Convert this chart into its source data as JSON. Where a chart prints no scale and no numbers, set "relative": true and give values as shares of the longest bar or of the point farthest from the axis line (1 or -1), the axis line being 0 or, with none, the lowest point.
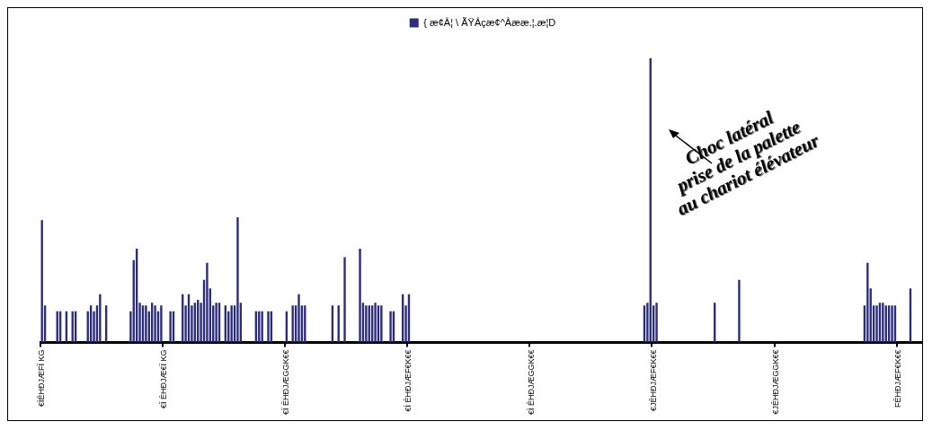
{
  "chart_data": {
    "type": "bar",
    "categories": [
      "€ÌÊHÐJÆFÏ KG",
      null,
      null,
      null,
      null,
      null,
      null,
      null,
      null,
      null,
      null,
      null,
      null,
      null,
      null,
      null,
      null,
      null,
      null,
      null,
      null,
      null,
      null,
      null,
      null,
      null,
      null,
      null,
      null,
      null,
      null,
      null,
      null,
      null,
      null,
      null,
      null,
      null,
      null,
      null,
      "€Ï ÊHÐJÆ€Ï KG",
      null,
      null,
      null,
      null,
      null,
      null,
      null,
      null,
      null,
      null,
      null,
      null,
      null,
      null,
      null,
      null,
      null,
      null,
      null,
      null,
      null,
      null,
      null,
      null,
      null,
      null,
      null,
      null,
      null,
      null,
      null,
      null,
      null,
      null,
      null,
      null,
      null,
      null,
      null,
      "€Ï ÊHÐJÆGGK€€",
      null,
      null,
      null,
      null,
      null,
      null,
      null,
      null,
      null,
      null,
      null,
      null,
      null,
      null,
      null,
      null,
      null,
      null,
      null,
      null,
      null,
      null,
      null,
      null,
      null,
      null,
      null,
      null,
      null,
      null,
      null,
      null,
      null,
      null,
      null,
      null,
      null,
      null,
      null,
      "€Ì ÊHÐJÆF€K€€",
      null,
      null,
      null,
      null,
      null,
      null,
      null,
      null,
      null,
      null,
      null,
      null,
      null,
      null,
      null,
      null,
      null,
      null,
      null,
      null,
      null,
      null,
      null,
      null,
      null,
      null,
      null,
      null,
      null,
      null,
      null,
      null,
      null,
      null,
      null,
      null,
      null,
      null,
      null,
      "€Ì ÊHÐJÆGGK€€",
      null,
      null,
      null,
      null,
      null,
      null,
      null,
      null,
      null,
      null,
      null,
      null,
      null,
      null,
      null,
      null,
      null,
      null,
      null,
      null,
      null,
      null,
      null,
      null,
      null,
      null,
      null,
      null,
      null,
      null,
      null,
      null,
      null,
      null,
      null,
      null,
      null,
      null,
      null,
      "€JÊHÐJÆF€K€€",
      null,
      null,
      null,
      null,
      null,
      null,
      null,
      null,
      null,
      null,
      null,
      null,
      null,
      null,
      null,
      null,
      null,
      null,
      null,
      null,
      null,
      null,
      null,
      null,
      null,
      null,
      null,
      null,
      null,
      null,
      null,
      null,
      null,
      null,
      null,
      null,
      null,
      null,
      null,
      "€JÊHÐJÆGGK€€",
      null,
      null,
      null,
      null,
      null,
      null,
      null,
      null,
      null,
      null,
      null,
      null,
      null,
      null,
      null,
      null,
      null,
      null,
      null,
      null,
      null,
      null,
      null,
      null,
      null,
      null,
      null,
      null,
      null,
      null,
      null,
      null,
      null,
      null,
      null,
      null,
      null,
      null,
      null,
      "FÊHÐJÆF€K€€",
      null,
      null,
      null,
      null,
      null,
      null,
      null
    ],
    "series": [
      {
        "name": "{ æ¢Â¦ \\ ÃŸÂçæ¢^Âææ.¦.æ¦D",
        "color": "#2b2c7c",
        "values": [
          0.43,
          0.13,
          null,
          null,
          null,
          0.11,
          0.11,
          null,
          0.11,
          null,
          0.11,
          0.11,
          null,
          null,
          null,
          0.11,
          0.13,
          0.11,
          0.13,
          0.17,
          null,
          0.13,
          null,
          null,
          null,
          null,
          null,
          null,
          null,
          0.11,
          0.29,
          0.33,
          0.14,
          0.13,
          0.13,
          0.11,
          0.14,
          0.13,
          0.11,
          0.13,
          null,
          null,
          0.11,
          0.11,
          null,
          null,
          0.17,
          0.13,
          0.17,
          0.13,
          0.14,
          0.15,
          0.14,
          0.22,
          0.28,
          0.19,
          0.13,
          0.14,
          0.14,
          null,
          0.13,
          0.11,
          0.13,
          0.13,
          0.44,
          0.14,
          null,
          null,
          null,
          null,
          0.11,
          0.11,
          0.11,
          null,
          0.11,
          0.11,
          null,
          null,
          null,
          null,
          0.11,
          null,
          0.13,
          0.13,
          0.17,
          0.13,
          0.13,
          null,
          null,
          null,
          null,
          null,
          null,
          null,
          null,
          0.13,
          null,
          0.13,
          null,
          0.3,
          null,
          null,
          null,
          null,
          0.33,
          0.14,
          0.13,
          0.13,
          0.13,
          0.14,
          0.13,
          0.13,
          null,
          null,
          0.11,
          0.11,
          null,
          null,
          0.17,
          0.13,
          0.17,
          null,
          null,
          null,
          null,
          null,
          null,
          null,
          null,
          null,
          null,
          null,
          null,
          null,
          null,
          null,
          null,
          null,
          null,
          null,
          null,
          null,
          null,
          null,
          null,
          null,
          null,
          null,
          null,
          null,
          null,
          null,
          null,
          null,
          null,
          null,
          null,
          null,
          null,
          null,
          null,
          null,
          null,
          null,
          null,
          null,
          null,
          null,
          null,
          null,
          null,
          null,
          null,
          null,
          null,
          null,
          null,
          null,
          null,
          null,
          null,
          null,
          null,
          null,
          null,
          null,
          null,
          null,
          null,
          null,
          null,
          null,
          null,
          null,
          null,
          null,
          null,
          0.13,
          0.14,
          1,
          0.13,
          0.14,
          null,
          null,
          null,
          null,
          null,
          null,
          null,
          null,
          null,
          null,
          null,
          null,
          null,
          null,
          null,
          null,
          null,
          null,
          0.14,
          null,
          null,
          null,
          null,
          null,
          null,
          null,
          0.22,
          null,
          null,
          null,
          null,
          null,
          null,
          null,
          null,
          null,
          null,
          null,
          null,
          null,
          null,
          null,
          null,
          null,
          null,
          null,
          null,
          null,
          null,
          null,
          null,
          null,
          null,
          null,
          null,
          null,
          null,
          null,
          null,
          null,
          null,
          null,
          null,
          null,
          null,
          null,
          null,
          0.13,
          0.28,
          0.19,
          0.13,
          0.13,
          0.14,
          0.14,
          0.13,
          0.13,
          0.13,
          0.13,
          null,
          null,
          null,
          null,
          0.19,
          null,
          null,
          null
        ]
      }
    ],
    "relative": true,
    "legend": "top",
    "annotations": [
      "Choc latéral\nprise de la palette\nau chariot élévateur"
    ]
  }
}
